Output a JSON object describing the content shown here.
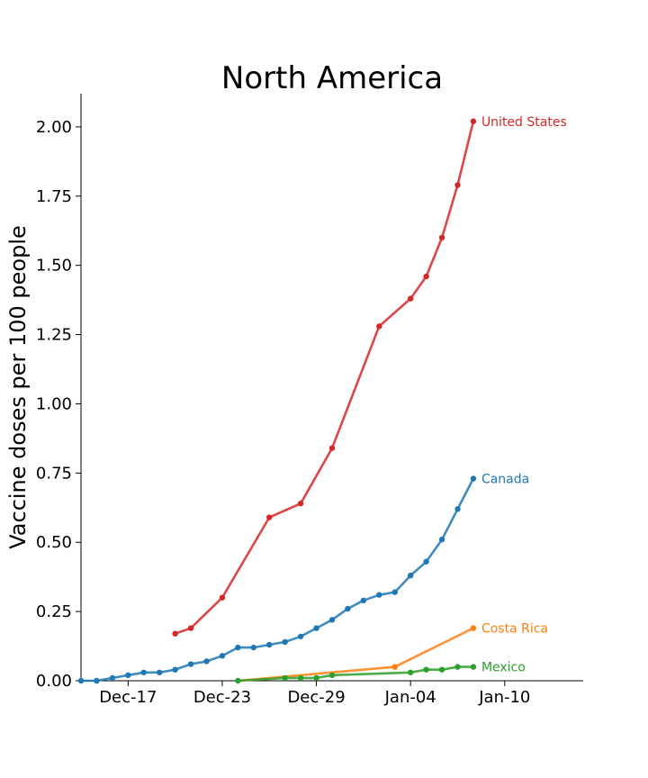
{
  "chart_data": {
    "type": "line",
    "title": "North America",
    "xlabel": "",
    "ylabel": "Vaccine doses per 100 people",
    "xlim": [
      "2020-12-14",
      "2021-01-15"
    ],
    "ylim": [
      0,
      2.12
    ],
    "x_ticks": [
      {
        "date": "2020-12-17",
        "label": "Dec-17"
      },
      {
        "date": "2020-12-23",
        "label": "Dec-23"
      },
      {
        "date": "2020-12-29",
        "label": "Dec-29"
      },
      {
        "date": "2021-01-04",
        "label": "Jan-04"
      },
      {
        "date": "2021-01-10",
        "label": "Jan-10"
      }
    ],
    "y_ticks": [
      "0.00",
      "0.25",
      "0.50",
      "0.75",
      "1.00",
      "1.25",
      "1.50",
      "1.75",
      "2.00"
    ],
    "grid": false,
    "series": [
      {
        "name": "United States",
        "color": "#d62728",
        "points": [
          [
            "2020-12-20",
            0.17
          ],
          [
            "2020-12-21",
            0.19
          ],
          [
            "2020-12-23",
            0.3
          ],
          [
            "2020-12-26",
            0.59
          ],
          [
            "2020-12-28",
            0.64
          ],
          [
            "2020-12-30",
            0.84
          ],
          [
            "2021-01-02",
            1.28
          ],
          [
            "2021-01-04",
            1.38
          ],
          [
            "2021-01-05",
            1.46
          ],
          [
            "2021-01-06",
            1.6
          ],
          [
            "2021-01-07",
            1.79
          ],
          [
            "2021-01-08",
            2.02
          ]
        ]
      },
      {
        "name": "Canada",
        "color": "#1f77b4",
        "points": [
          [
            "2020-12-14",
            0.0
          ],
          [
            "2020-12-15",
            0.0
          ],
          [
            "2020-12-16",
            0.01
          ],
          [
            "2020-12-17",
            0.02
          ],
          [
            "2020-12-18",
            0.03
          ],
          [
            "2020-12-19",
            0.03
          ],
          [
            "2020-12-20",
            0.04
          ],
          [
            "2020-12-21",
            0.06
          ],
          [
            "2020-12-22",
            0.07
          ],
          [
            "2020-12-23",
            0.09
          ],
          [
            "2020-12-24",
            0.12
          ],
          [
            "2020-12-25",
            0.12
          ],
          [
            "2020-12-26",
            0.13
          ],
          [
            "2020-12-27",
            0.14
          ],
          [
            "2020-12-28",
            0.16
          ],
          [
            "2020-12-29",
            0.19
          ],
          [
            "2020-12-30",
            0.22
          ],
          [
            "2020-12-31",
            0.26
          ],
          [
            "2021-01-01",
            0.29
          ],
          [
            "2021-01-02",
            0.31
          ],
          [
            "2021-01-03",
            0.32
          ],
          [
            "2021-01-04",
            0.38
          ],
          [
            "2021-01-05",
            0.43
          ],
          [
            "2021-01-06",
            0.51
          ],
          [
            "2021-01-07",
            0.62
          ],
          [
            "2021-01-08",
            0.73
          ]
        ]
      },
      {
        "name": "Costa Rica",
        "color": "#ff7f0e",
        "points": [
          [
            "2021-01-03",
            0.05
          ],
          [
            "2021-01-08",
            0.19
          ]
        ]
      },
      {
        "name": "Mexico",
        "color": "#2ca02c",
        "points": [
          [
            "2020-12-24",
            0.0
          ],
          [
            "2020-12-27",
            0.01
          ],
          [
            "2020-12-28",
            0.01
          ],
          [
            "2020-12-29",
            0.01
          ],
          [
            "2020-12-30",
            0.02
          ],
          [
            "2021-01-04",
            0.03
          ],
          [
            "2021-01-05",
            0.04
          ],
          [
            "2021-01-06",
            0.04
          ],
          [
            "2021-01-07",
            0.05
          ],
          [
            "2021-01-08",
            0.05
          ]
        ]
      }
    ],
    "costa_rica_line_start": [
      "2020-12-24",
      0.0
    ]
  }
}
